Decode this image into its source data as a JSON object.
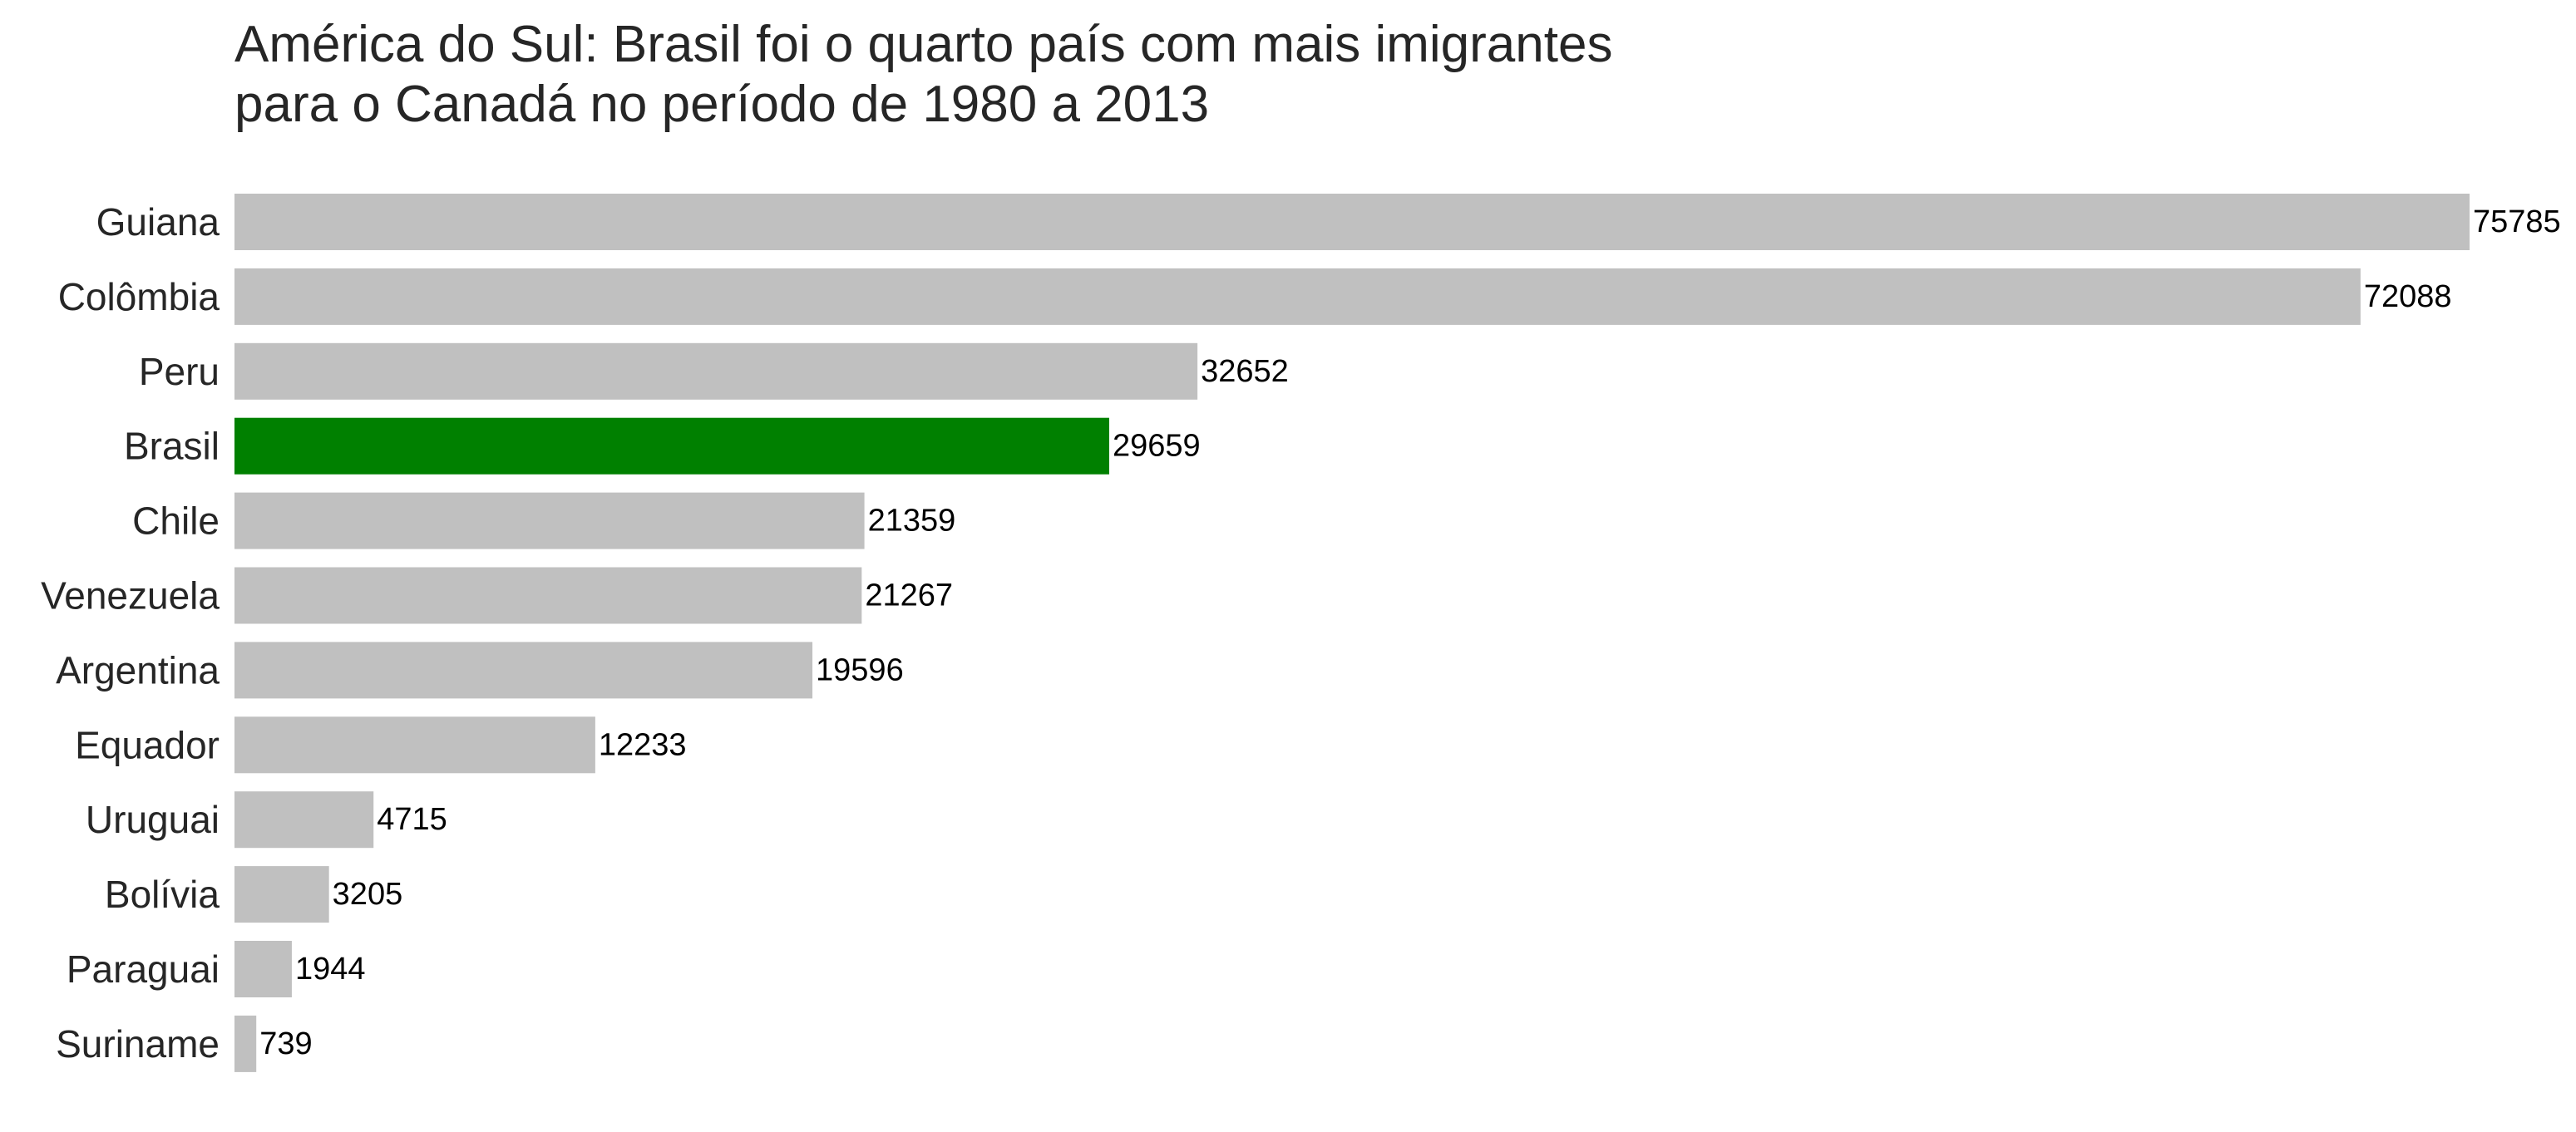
{
  "chart_data": {
    "type": "bar",
    "orientation": "horizontal",
    "title": "América do Sul: Brasil foi o quarto país com mais imigrantes\npara o Canadá no período de 1980 a 2013",
    "categories": [
      "Guiana",
      "Colômbia",
      "Peru",
      "Brasil",
      "Chile",
      "Venezuela",
      "Argentina",
      "Equador",
      "Uruguai",
      "Bolívia",
      "Paraguai",
      "Suriname"
    ],
    "values": [
      75785,
      72088,
      32652,
      29659,
      21359,
      21267,
      19596,
      12233,
      4715,
      3205,
      1944,
      739
    ],
    "value_labels": [
      "75785",
      "72088",
      "32652",
      "29659",
      "21359",
      "21267",
      "19596",
      "12233",
      "4715",
      "3205",
      "1944",
      "739"
    ],
    "highlight_category": "Brasil",
    "xlim": [
      0,
      75785
    ],
    "grid": false,
    "x_axis_visible": false,
    "colors": {
      "default_bar": "#c0c0c0",
      "highlight_bar": "#008000",
      "title": "#262626",
      "tick_label": "#262626",
      "value_label": "#000000"
    }
  }
}
